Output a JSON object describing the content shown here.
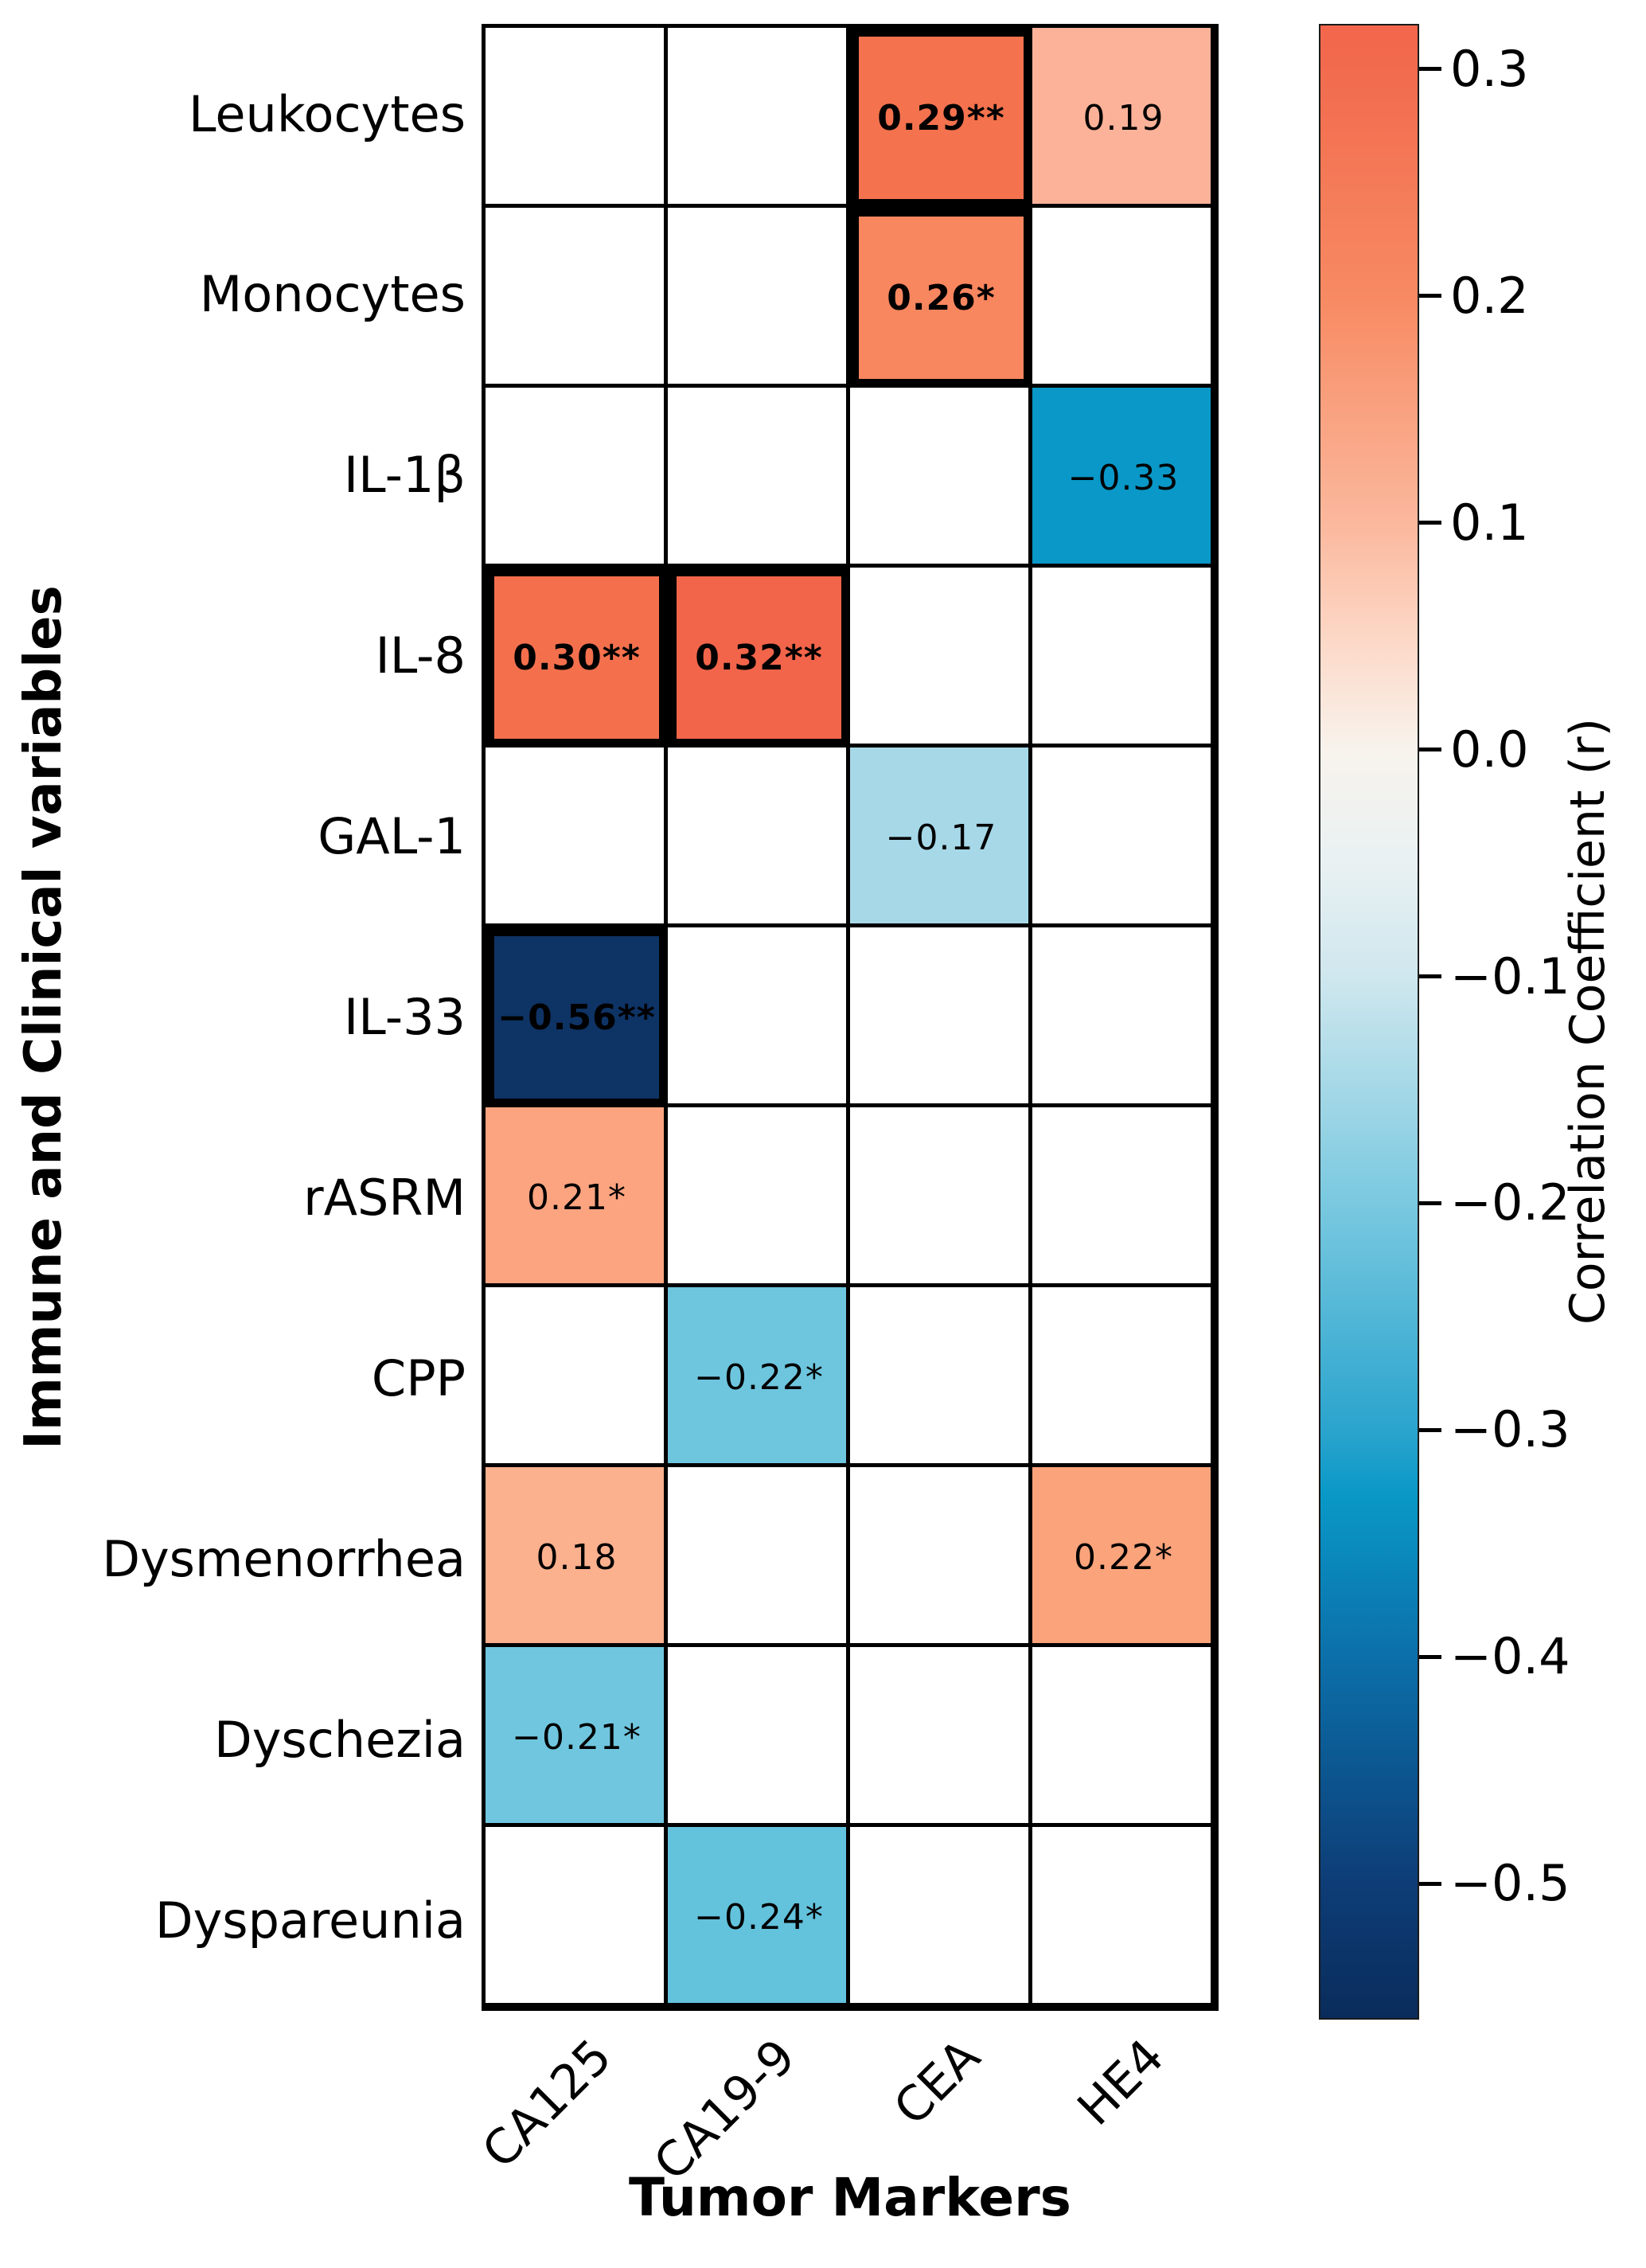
{
  "chart_data": {
    "type": "heatmap",
    "xlabel": "Tumor Markers",
    "ylabel": "Immune and Clinical variables",
    "columns": [
      "CA125",
      "CA19-9",
      "CEA",
      "HE4"
    ],
    "rows": [
      "Leukocytes",
      "Monocytes",
      "IL-1β",
      "IL-8",
      "GAL-1",
      "IL-33",
      "rASRM",
      "CPP",
      "Dysmenorrhea",
      "Dyschezia",
      "Dyspareunia"
    ],
    "empty_cell_color": "#ffffff",
    "grid_line_color": "#000000",
    "cells": [
      {
        "row": "Leukocytes",
        "col": "CEA",
        "value": 0.29,
        "label": "0.29**",
        "significant": true,
        "color": "#f4724e"
      },
      {
        "row": "Leukocytes",
        "col": "HE4",
        "value": 0.19,
        "label": "0.19",
        "significant": false,
        "color": "#fbb299"
      },
      {
        "row": "Monocytes",
        "col": "CEA",
        "value": 0.26,
        "label": "0.26*",
        "significant": true,
        "color": "#f8865f"
      },
      {
        "row": "IL-1β",
        "col": "HE4",
        "value": -0.33,
        "label": "−0.33",
        "significant": false,
        "color": "#0998c7"
      },
      {
        "row": "IL-8",
        "col": "CA125",
        "value": 0.3,
        "label": "0.30**",
        "significant": true,
        "color": "#f4704d"
      },
      {
        "row": "IL-8",
        "col": "CA19-9",
        "value": 0.32,
        "label": "0.32**",
        "significant": true,
        "color": "#f2654a"
      },
      {
        "row": "GAL-1",
        "col": "CEA",
        "value": -0.17,
        "label": "−0.17",
        "significant": false,
        "color": "#a6d8e8"
      },
      {
        "row": "IL-33",
        "col": "CA125",
        "value": -0.56,
        "label": "−0.56**",
        "significant": true,
        "color": "#0e3365"
      },
      {
        "row": "rASRM",
        "col": "CA125",
        "value": 0.21,
        "label": "0.21*",
        "significant": false,
        "color": "#fca480"
      },
      {
        "row": "CPP",
        "col": "CA19-9",
        "value": -0.22,
        "label": "−0.22*",
        "significant": false,
        "color": "#6ec5de"
      },
      {
        "row": "Dysmenorrhea",
        "col": "CA125",
        "value": 0.18,
        "label": "0.18",
        "significant": false,
        "color": "#fbb08e"
      },
      {
        "row": "Dysmenorrhea",
        "col": "HE4",
        "value": 0.22,
        "label": "0.22*",
        "significant": false,
        "color": "#fba37b"
      },
      {
        "row": "Dyschezia",
        "col": "CA125",
        "value": -0.21,
        "label": "−0.21*",
        "significant": false,
        "color": "#70c6df"
      },
      {
        "row": "Dyspareunia",
        "col": "CA19-9",
        "value": -0.24,
        "label": "−0.24*",
        "significant": false,
        "color": "#63c2dc"
      }
    ],
    "colorbar": {
      "label": "Correlation Coefficient (r)",
      "vmax": 0.32,
      "vmin": -0.56,
      "ticks": [
        {
          "value": 0.3,
          "label": "0.3"
        },
        {
          "value": 0.2,
          "label": "0.2"
        },
        {
          "value": 0.1,
          "label": "0.1"
        },
        {
          "value": 0.0,
          "label": "0.0"
        },
        {
          "value": -0.1,
          "label": "−0.1"
        },
        {
          "value": -0.2,
          "label": "−0.2"
        },
        {
          "value": -0.3,
          "label": "−0.3"
        },
        {
          "value": -0.4,
          "label": "−0.4"
        },
        {
          "value": -0.5,
          "label": "−0.5"
        }
      ],
      "gradient_stops": [
        {
          "pos": 0.0,
          "color": "#f3664c"
        },
        {
          "pos": 0.023,
          "color": "#f26b4e"
        },
        {
          "pos": 0.136,
          "color": "#f78a62"
        },
        {
          "pos": 0.25,
          "color": "#fbb89d"
        },
        {
          "pos": 0.31,
          "color": "#fcd9c8"
        },
        {
          "pos": 0.364,
          "color": "#f8f3ed"
        },
        {
          "pos": 0.42,
          "color": "#e9f1f2"
        },
        {
          "pos": 0.477,
          "color": "#cfe7ee"
        },
        {
          "pos": 0.59,
          "color": "#7ac9e0"
        },
        {
          "pos": 0.705,
          "color": "#2aa4cd"
        },
        {
          "pos": 0.738,
          "color": "#0998c7"
        },
        {
          "pos": 0.82,
          "color": "#0c6fa9"
        },
        {
          "pos": 0.932,
          "color": "#0d3d77"
        },
        {
          "pos": 1.0,
          "color": "#0a2c5b"
        }
      ]
    }
  }
}
